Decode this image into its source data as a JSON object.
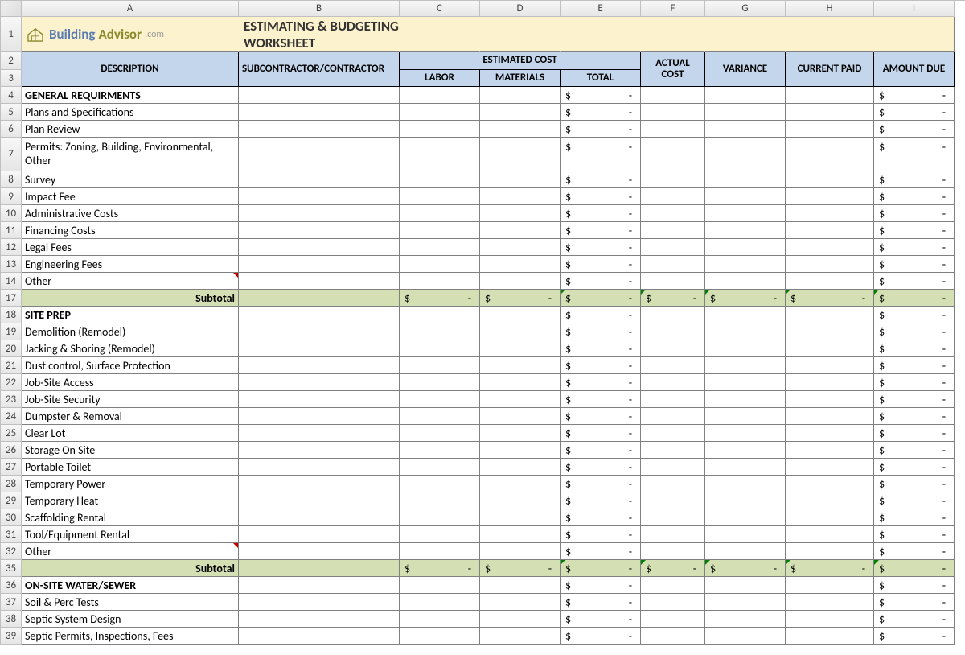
{
  "colors": {
    "title_bg": "#fdf2ce",
    "header_bg": "#c3d6eb",
    "subtotal_bg": "#d4e0b4",
    "grid_border": "#808080",
    "colhdr_bg_top": "#f7f7f7",
    "colhdr_bg_bot": "#e6e6e6"
  },
  "columns": [
    "A",
    "B",
    "C",
    "D",
    "E",
    "F",
    "G",
    "H",
    "I"
  ],
  "title": "ESTIMATING & BUDGETING WORKSHEET",
  "logo": {
    "part1": "Building",
    "part2": "Advisor",
    "suffix": ".com"
  },
  "headers": {
    "description": "DESCRIPTION",
    "subcontractor": "SUBCONTRACTOR/CONTRACTOR",
    "estimated_cost": "ESTIMATED COST",
    "labor": "LABOR",
    "materials": "MATERIALS",
    "total": "TOTAL",
    "actual_cost": "ACTUAL COST",
    "variance": "VARIANCE",
    "current_paid": "CURRENT PAID",
    "amount_due": "AMOUNT DUE"
  },
  "subtotal_label": "Subtotal",
  "dollar": "$",
  "dash": "-",
  "rows": [
    {
      "n": 4,
      "type": "section",
      "desc": "GENERAL REQUIRMENTS",
      "e": true,
      "i": true
    },
    {
      "n": 5,
      "type": "item",
      "desc": "Plans and Specifications",
      "e": true,
      "i": true
    },
    {
      "n": 6,
      "type": "item",
      "desc": "Plan Review",
      "e": true,
      "i": true
    },
    {
      "n": 7,
      "type": "item",
      "desc": "Permits: Zoning, Building, Environmental, Other",
      "tall": true,
      "e": true,
      "i": true
    },
    {
      "n": 8,
      "type": "item",
      "desc": "Survey",
      "e": true,
      "i": true
    },
    {
      "n": 9,
      "type": "item",
      "desc": "Impact Fee",
      "e": true,
      "i": true
    },
    {
      "n": 10,
      "type": "item",
      "desc": "Administrative Costs",
      "e": true,
      "i": true
    },
    {
      "n": 11,
      "type": "item",
      "desc": "Financing Costs",
      "e": true,
      "i": true
    },
    {
      "n": 12,
      "type": "item",
      "desc": "Legal Fees",
      "e": true,
      "i": true
    },
    {
      "n": 13,
      "type": "item",
      "desc": "Engineering Fees",
      "e": true,
      "i": true
    },
    {
      "n": 14,
      "type": "item",
      "desc": "Other",
      "e": true,
      "i": true,
      "red": true
    },
    {
      "n": 17,
      "type": "subtotal"
    },
    {
      "n": 18,
      "type": "section",
      "desc": "SITE PREP",
      "e": true,
      "i": true
    },
    {
      "n": 19,
      "type": "item",
      "desc": "Demolition (Remodel)",
      "e": true,
      "i": true
    },
    {
      "n": 20,
      "type": "item",
      "desc": "Jacking & Shoring (Remodel)",
      "e": true,
      "i": true
    },
    {
      "n": 21,
      "type": "item",
      "desc": "Dust control, Surface Protection",
      "e": true,
      "i": true
    },
    {
      "n": 22,
      "type": "item",
      "desc": "Job-Site Access",
      "e": true,
      "i": true
    },
    {
      "n": 23,
      "type": "item",
      "desc": "Job-Site Security",
      "e": true,
      "i": true
    },
    {
      "n": 24,
      "type": "item",
      "desc": "Dumpster & Removal",
      "e": true,
      "i": true
    },
    {
      "n": 25,
      "type": "item",
      "desc": "Clear Lot",
      "e": true,
      "i": true
    },
    {
      "n": 26,
      "type": "item",
      "desc": "Storage On Site",
      "e": true,
      "i": true
    },
    {
      "n": 27,
      "type": "item",
      "desc": "Portable Toilet",
      "e": true,
      "i": true
    },
    {
      "n": 28,
      "type": "item",
      "desc": "Temporary Power",
      "e": true,
      "i": true
    },
    {
      "n": 29,
      "type": "item",
      "desc": "Temporary Heat",
      "e": true,
      "i": true
    },
    {
      "n": 30,
      "type": "item",
      "desc": "Scaffolding Rental",
      "e": true,
      "i": true
    },
    {
      "n": 31,
      "type": "item",
      "desc": "Tool/Equipment Rental",
      "e": true,
      "i": true
    },
    {
      "n": 32,
      "type": "item",
      "desc": "Other",
      "e": true,
      "i": true,
      "red": true
    },
    {
      "n": 35,
      "type": "subtotal"
    },
    {
      "n": 36,
      "type": "section",
      "desc": "ON-SITE WATER/SEWER",
      "e": true,
      "i": true
    },
    {
      "n": 37,
      "type": "item",
      "desc": "Soil & Perc Tests",
      "e": true,
      "i": true
    },
    {
      "n": 38,
      "type": "item",
      "desc": "Septic System Design",
      "e": true,
      "i": true
    },
    {
      "n": 39,
      "type": "item",
      "desc": "Septic Permits, Inspections, Fees",
      "e": true,
      "i": true
    }
  ]
}
